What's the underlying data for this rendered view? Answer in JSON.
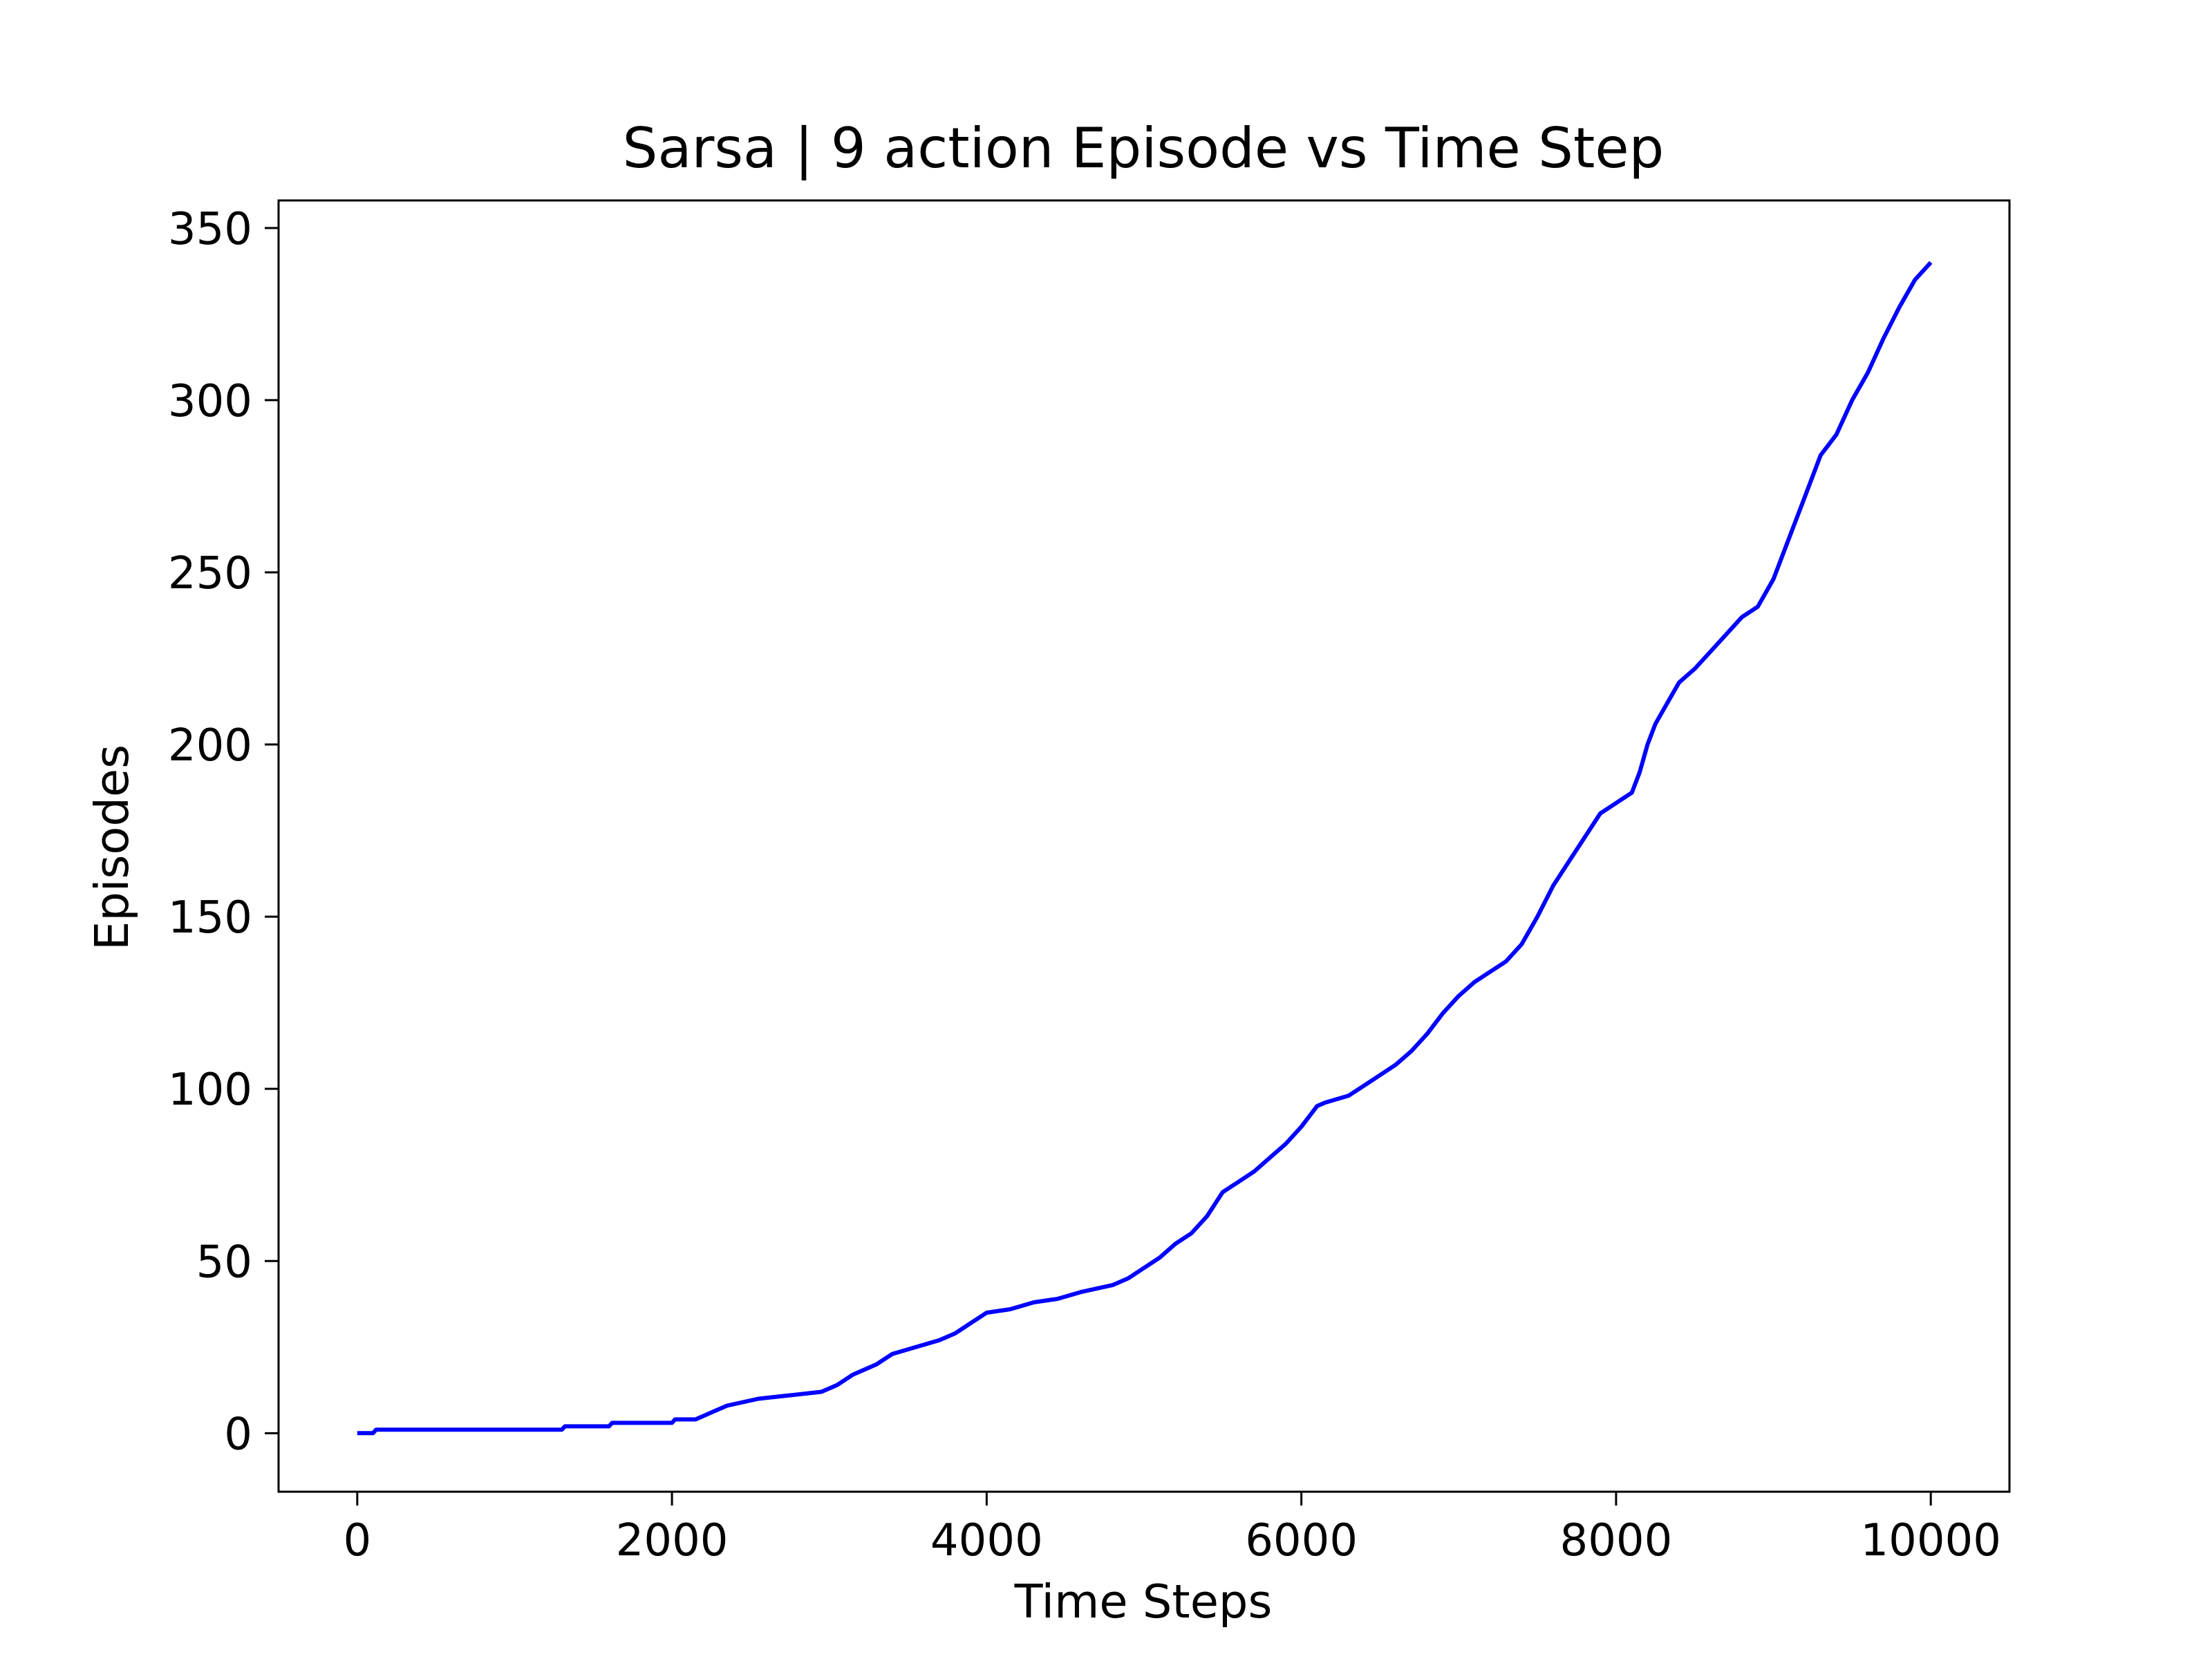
{
  "chart_data": {
    "type": "line",
    "title": "Sarsa | 9 action Episode vs Time Step",
    "xlabel": "Time Steps",
    "ylabel": "Episodes",
    "xlim": [
      -500,
      10500
    ],
    "ylim": [
      -17,
      358
    ],
    "xticks": [
      0,
      2000,
      4000,
      6000,
      8000,
      10000
    ],
    "xtick_labels": [
      "0",
      "2000",
      "4000",
      "6000",
      "8000",
      "10000"
    ],
    "yticks": [
      0,
      50,
      100,
      150,
      200,
      250,
      300,
      350
    ],
    "ytick_labels": [
      "0",
      "50",
      "100",
      "150",
      "200",
      "250",
      "300",
      "350"
    ],
    "grid": false,
    "legend": "none",
    "series": [
      {
        "color": "#0000ff",
        "x": [
          0,
          100,
          120,
          1300,
          1320,
          1600,
          1620,
          2000,
          2020,
          2150,
          2250,
          2350,
          2450,
          2550,
          2750,
          2950,
          3050,
          3150,
          3300,
          3400,
          3550,
          3700,
          3800,
          3900,
          4000,
          4150,
          4300,
          4450,
          4600,
          4700,
          4800,
          4900,
          5000,
          5100,
          5200,
          5300,
          5400,
          5500,
          5600,
          5700,
          5800,
          5900,
          6000,
          6100,
          6150,
          6300,
          6400,
          6500,
          6600,
          6700,
          6800,
          6900,
          7000,
          7100,
          7200,
          7300,
          7400,
          7500,
          7600,
          7700,
          7800,
          7900,
          8000,
          8100,
          8150,
          8200,
          8250,
          8300,
          8400,
          8500,
          8600,
          8700,
          8800,
          8900,
          9000,
          9100,
          9200,
          9300,
          9400,
          9500,
          9600,
          9700,
          9800,
          9900,
          10000
        ],
        "y": [
          0,
          0,
          1,
          1,
          2,
          2,
          3,
          3,
          4,
          4,
          6,
          8,
          9,
          10,
          11,
          12,
          14,
          17,
          20,
          23,
          25,
          27,
          29,
          32,
          35,
          36,
          38,
          39,
          41,
          42,
          43,
          45,
          48,
          51,
          55,
          58,
          63,
          70,
          73,
          76,
          80,
          84,
          89,
          95,
          96,
          98,
          101,
          104,
          107,
          111,
          116,
          122,
          127,
          131,
          134,
          137,
          142,
          150,
          159,
          166,
          173,
          180,
          183,
          186,
          192,
          200,
          206,
          210,
          218,
          222,
          227,
          232,
          237,
          240,
          248,
          260,
          272,
          284,
          290,
          300,
          308,
          318,
          327,
          335,
          340
        ]
      }
    ]
  }
}
